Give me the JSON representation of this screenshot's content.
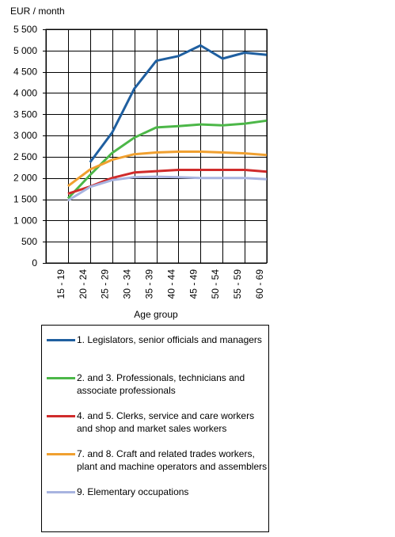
{
  "chart_data": {
    "type": "line",
    "ylabel": "EUR / month",
    "xlabel": "Age group",
    "categories": [
      "15 - 19",
      "20 - 24",
      "25 - 29",
      "30 - 34",
      "35 - 39",
      "40 - 44",
      "45 - 49",
      "50 - 54",
      "55 - 59",
      "60 - 69"
    ],
    "ylim": [
      0,
      5500
    ],
    "yticks": [
      0,
      500,
      1000,
      1500,
      2000,
      2500,
      3000,
      3500,
      4000,
      4500,
      5000,
      5500
    ],
    "ytick_labels": [
      "0",
      "500",
      "1 000",
      "1 500",
      "2 000",
      "2 500",
      "3 000",
      "3 500",
      "4 000",
      "4 500",
      "5 000",
      "5 500"
    ],
    "grid": true,
    "legend_position": "bottom",
    "series": [
      {
        "name": "1. Legislators, senior officials and managers",
        "color": "#1f5fa0",
        "values": [
          null,
          2370,
          3070,
          4100,
          4760,
          4870,
          5120,
          4810,
          4950,
          4900
        ]
      },
      {
        "name": "2. and 3. Professionals, technicians and associate professionals",
        "color": "#4cb748",
        "values": [
          1520,
          2070,
          2590,
          2950,
          3190,
          3220,
          3260,
          3240,
          3280,
          3350
        ]
      },
      {
        "name": "4. and 5. Clerks, service and care workers and shop and market sales workers",
        "color": "#d02b2b",
        "values": [
          1630,
          1800,
          2000,
          2130,
          2160,
          2190,
          2190,
          2190,
          2190,
          2150
        ]
      },
      {
        "name": "7. and 8. Craft and related trades workers, plant and machine operators and assemblers",
        "color": "#f0a030",
        "values": [
          1810,
          2200,
          2430,
          2560,
          2600,
          2620,
          2620,
          2600,
          2580,
          2540
        ]
      },
      {
        "name": "9. Elementary occupations",
        "color": "#a8b4e0",
        "values": [
          1470,
          1790,
          1950,
          2020,
          2030,
          2020,
          2000,
          2000,
          2000,
          1970
        ]
      }
    ]
  }
}
